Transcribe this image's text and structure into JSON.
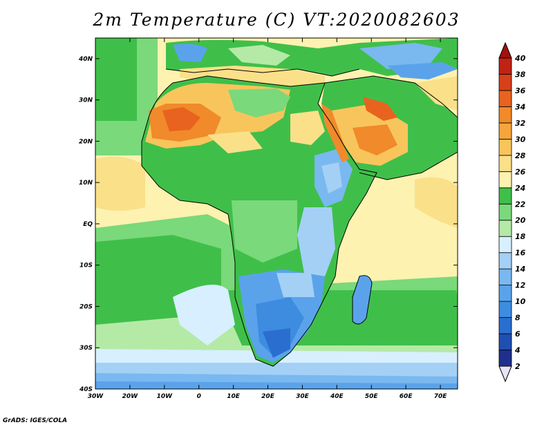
{
  "title": "2m Temperature (C) VT:2020082603",
  "credit": "GrADS: IGES/COLA",
  "chart_data": {
    "type": "heatmap",
    "variable": "2m Temperature",
    "units": "C",
    "valid_time": "2020082603",
    "region": "Africa",
    "lon_range": [
      -30,
      75
    ],
    "lat_range": [
      -40,
      45
    ],
    "x_ticks": [
      "30W",
      "20W",
      "10W",
      "0",
      "10E",
      "20E",
      "30E",
      "40E",
      "50E",
      "60E",
      "70E"
    ],
    "x_tick_values": [
      -30,
      -20,
      -10,
      0,
      10,
      20,
      30,
      40,
      50,
      60,
      70
    ],
    "y_ticks": [
      "40S",
      "30S",
      "20S",
      "10S",
      "EQ",
      "10N",
      "20N",
      "30N",
      "40N"
    ],
    "y_tick_values": [
      -40,
      -30,
      -20,
      -10,
      0,
      10,
      20,
      30,
      40
    ],
    "colorbar": {
      "levels": [
        2,
        4,
        6,
        8,
        10,
        12,
        14,
        16,
        18,
        20,
        22,
        24,
        26,
        28,
        30,
        32,
        34,
        36,
        38,
        40
      ],
      "labels": [
        "2",
        "4",
        "6",
        "8",
        "10",
        "12",
        "14",
        "16",
        "18",
        "20",
        "22",
        "24",
        "26",
        "28",
        "30",
        "32",
        "34",
        "36",
        "38",
        "40"
      ],
      "colors": [
        "#1e2f8c",
        "#1f4fb3",
        "#2a6fcf",
        "#3d8ce0",
        "#5aa3eb",
        "#7ab8f0",
        "#a4d0f5",
        "#d8efff",
        "#b4eaa6",
        "#7ad97a",
        "#3fbf4a",
        "#fdf2b0",
        "#fbe08a",
        "#f8c55c",
        "#f5a53b",
        "#f08a2a",
        "#e8631f",
        "#d8401a",
        "#c02314",
        "#a3110c",
        "#e8e4f6"
      ]
    }
  }
}
